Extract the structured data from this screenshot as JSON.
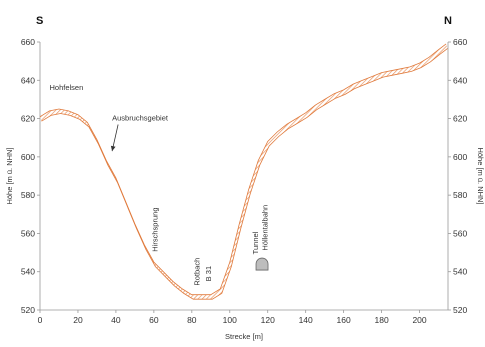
{
  "chart_data": {
    "type": "area",
    "left_label": "S",
    "right_label": "N",
    "xlabel": "Strecke [m]",
    "ylabel": "Höhe [m ü. NHN]",
    "xlim": [
      0,
      215
    ],
    "ylim": [
      520,
      660
    ],
    "xticks": [
      0,
      20,
      40,
      60,
      80,
      100,
      120,
      140,
      160,
      180,
      200
    ],
    "yticks": [
      520,
      540,
      560,
      580,
      600,
      620,
      640,
      660
    ],
    "grid": false,
    "colors": {
      "band_stroke": "#e07a3c",
      "band_hatch": "#e9905a",
      "tunnel_fill": "#bdbdbd"
    },
    "series": [
      {
        "x": [
          0,
          5,
          10,
          15,
          20,
          25,
          30,
          35,
          40,
          45,
          50,
          55,
          60,
          65,
          70,
          75,
          80,
          85,
          90,
          95,
          100,
          105,
          110,
          115,
          120,
          125,
          130,
          135,
          140,
          145,
          150,
          155,
          160,
          165,
          170,
          175,
          180,
          185,
          190,
          195,
          200,
          205,
          210,
          214
        ],
        "y": [
          621,
          624,
          625,
          624,
          622,
          618,
          609,
          598,
          589,
          577,
          565,
          554,
          545,
          540,
          535,
          531,
          528,
          528,
          528,
          531,
          545,
          565,
          583,
          598,
          608,
          613,
          617,
          620,
          623,
          627,
          630,
          633,
          635,
          638,
          640,
          642,
          644,
          645,
          646,
          647,
          649,
          652,
          656,
          659
        ]
      }
    ],
    "annotations": [
      {
        "text": "Hohfelsen",
        "x": 5,
        "y": 635,
        "rotate": false
      },
      {
        "text": "Ausbruchsgebiet",
        "x": 38,
        "y": 619,
        "rotate": false,
        "arrow_to": [
          38,
          603
        ]
      },
      {
        "text": "Hirschsprung",
        "x": 62,
        "y": 562,
        "rotate": true
      },
      {
        "text": "Rotbach",
        "x": 84,
        "y": 540,
        "rotate": true
      },
      {
        "text": "B 31",
        "x": 90,
        "y": 539,
        "rotate": true
      },
      {
        "text": "Tunnel",
        "x": 115,
        "y": 555,
        "rotate": true
      },
      {
        "text": "Höllentalbahn",
        "x": 120,
        "y": 563,
        "rotate": true
      }
    ],
    "tunnel": {
      "x": 117,
      "y": 544
    }
  }
}
